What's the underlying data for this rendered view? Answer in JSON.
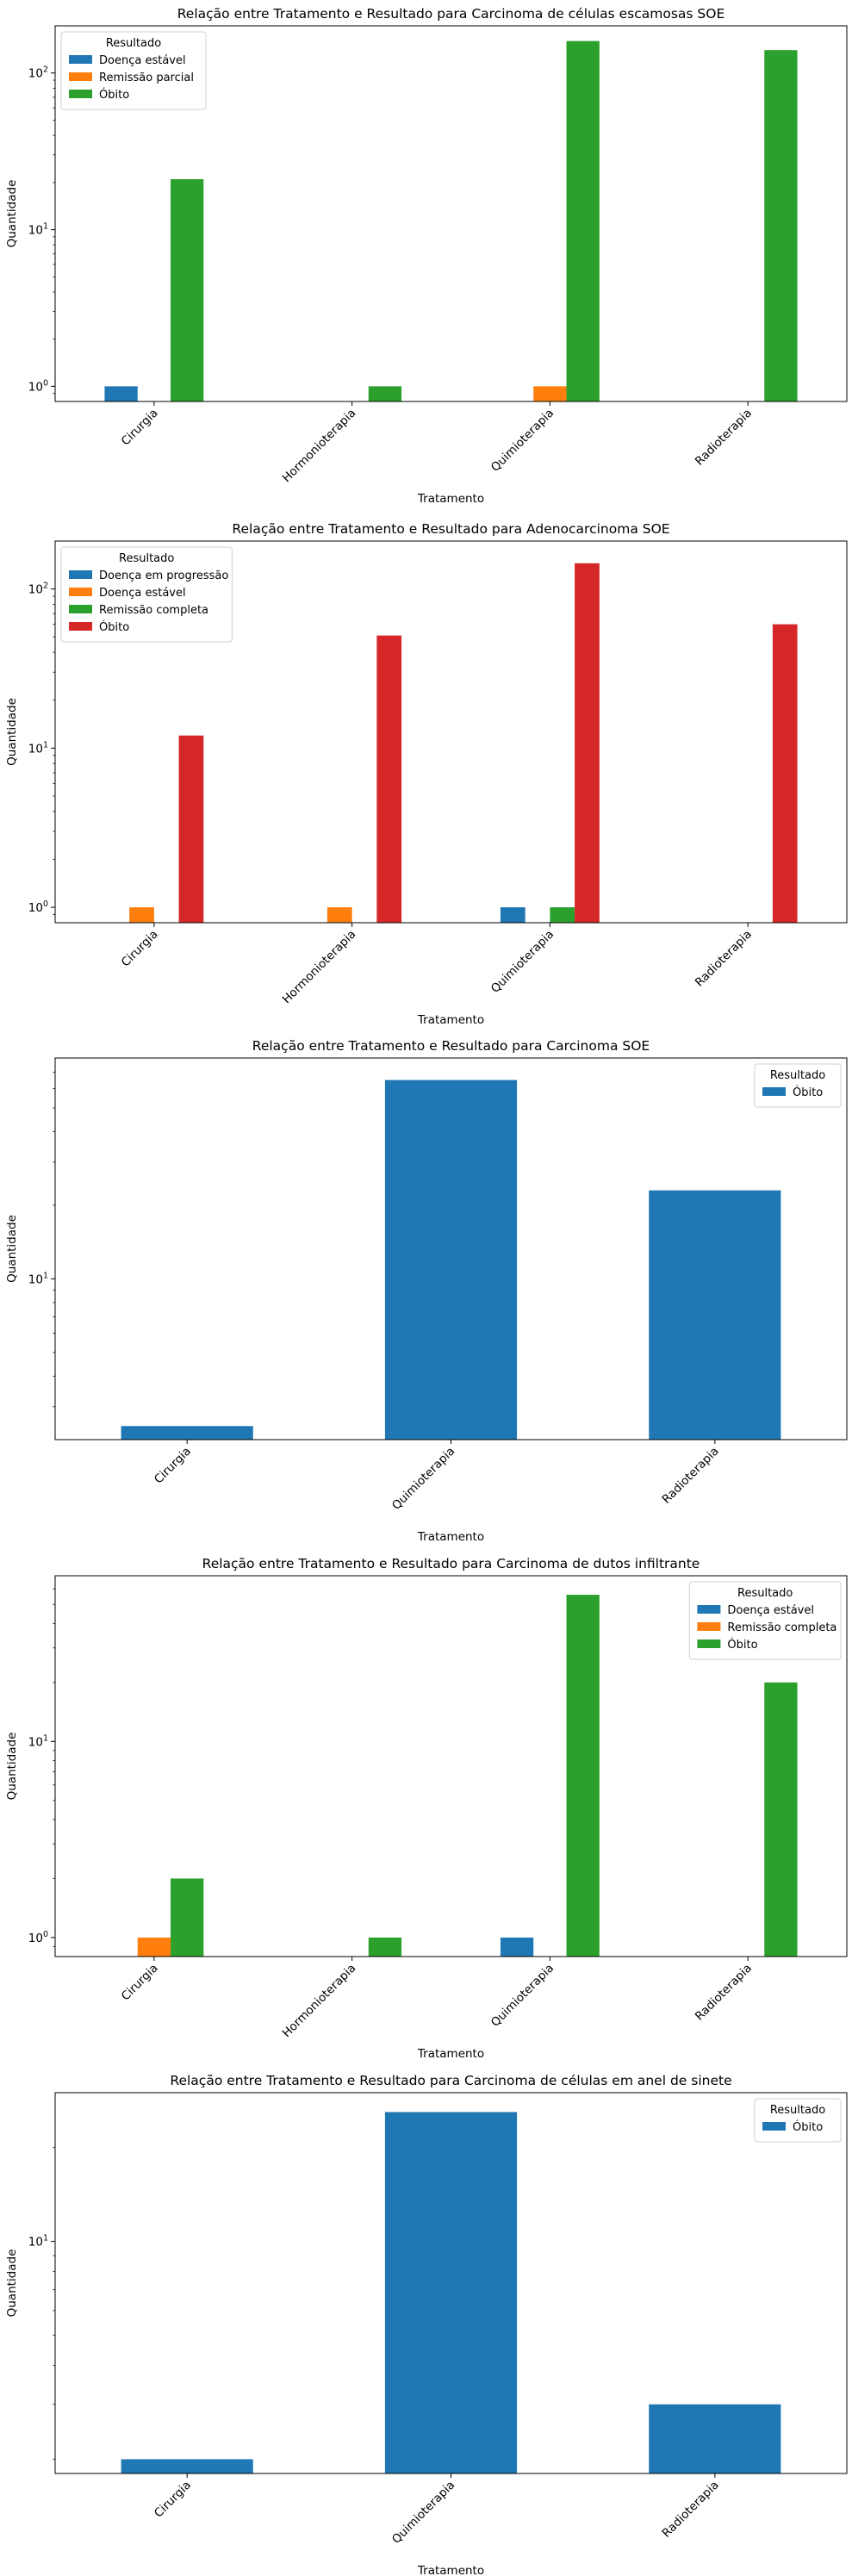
{
  "chart_data": [
    {
      "type": "bar",
      "title": "Relação entre Tratamento e Resultado para Carcinoma de células escamosas SOE",
      "xlabel": "Tratamento",
      "ylabel": "Quantidade",
      "scale": "log",
      "ylim": [
        0.8,
        200
      ],
      "yticks": [
        {
          "value": 1,
          "base": "10",
          "exp": "0"
        },
        {
          "value": 10,
          "base": "10",
          "exp": "1"
        },
        {
          "value": 100,
          "base": "10",
          "exp": "2"
        }
      ],
      "categories": [
        "Cirurgia",
        "Hormonioterapia",
        "Quimioterapia",
        "Radioterapia"
      ],
      "legend_title": "Resultado",
      "legend_position": "upper-left",
      "series": [
        {
          "name": "Doença estável",
          "color": "#1f77b4",
          "values": [
            1,
            null,
            null,
            null
          ]
        },
        {
          "name": "Remissão parcial",
          "color": "#ff7f0e",
          "values": [
            null,
            null,
            1,
            null
          ]
        },
        {
          "name": "Óbito",
          "color": "#2ca02c",
          "values": [
            21,
            1,
            160,
            140
          ]
        }
      ]
    },
    {
      "type": "bar",
      "title": "Relação entre Tratamento e Resultado para Adenocarcinoma SOE",
      "xlabel": "Tratamento",
      "ylabel": "Quantidade",
      "scale": "log",
      "ylim": [
        0.8,
        200
      ],
      "yticks": [
        {
          "value": 1,
          "base": "10",
          "exp": "0"
        },
        {
          "value": 10,
          "base": "10",
          "exp": "1"
        },
        {
          "value": 100,
          "base": "10",
          "exp": "2"
        }
      ],
      "categories": [
        "Cirurgia",
        "Hormonioterapia",
        "Quimioterapia",
        "Radioterapia"
      ],
      "legend_title": "Resultado",
      "legend_position": "upper-left",
      "series": [
        {
          "name": "Doença em progressão",
          "color": "#1f77b4",
          "values": [
            null,
            null,
            1,
            null
          ]
        },
        {
          "name": "Doença estável",
          "color": "#ff7f0e",
          "values": [
            1,
            1,
            null,
            null
          ]
        },
        {
          "name": "Remissão completa",
          "color": "#2ca02c",
          "values": [
            null,
            null,
            1,
            null
          ]
        },
        {
          "name": "Óbito",
          "color": "#d62728",
          "values": [
            12,
            51,
            145,
            60
          ]
        }
      ]
    },
    {
      "type": "bar",
      "title": "Relação entre Tratamento e Resultado para Carcinoma SOE",
      "xlabel": "Tratamento",
      "ylabel": "Quantidade",
      "scale": "log",
      "ylim": [
        2.2,
        80
      ],
      "yticks": [
        {
          "value": 10,
          "base": "10",
          "exp": "1"
        }
      ],
      "categories": [
        "Cirurgia",
        "Quimioterapia",
        "Radioterapia"
      ],
      "legend_title": "Resultado",
      "legend_position": "upper-right",
      "series": [
        {
          "name": "Óbito",
          "color": "#1f77b4",
          "values": [
            2.5,
            65,
            23
          ]
        }
      ]
    },
    {
      "type": "bar",
      "title": "Relação entre Tratamento e Resultado para Carcinoma de dutos infiltrante",
      "xlabel": "Tratamento",
      "ylabel": "Quantidade",
      "scale": "log",
      "ylim": [
        0.8,
        70
      ],
      "yticks": [
        {
          "value": 1,
          "base": "10",
          "exp": "0"
        },
        {
          "value": 10,
          "base": "10",
          "exp": "1"
        }
      ],
      "categories": [
        "Cirurgia",
        "Hormonioterapia",
        "Quimioterapia",
        "Radioterapia"
      ],
      "legend_title": "Resultado",
      "legend_position": "upper-right",
      "series": [
        {
          "name": "Doença estável",
          "color": "#1f77b4",
          "values": [
            null,
            null,
            1,
            null
          ]
        },
        {
          "name": "Remissão completa",
          "color": "#ff7f0e",
          "values": [
            1,
            null,
            null,
            null
          ]
        },
        {
          "name": "Óbito",
          "color": "#2ca02c",
          "values": [
            2,
            1,
            56,
            20
          ]
        }
      ]
    },
    {
      "type": "bar",
      "title": "Relação entre Tratamento e Resultado para Carcinoma de células em anel de sinete",
      "xlabel": "Tratamento",
      "ylabel": "Quantidade",
      "scale": "log",
      "ylim": [
        1.8,
        30
      ],
      "yticks": [
        {
          "value": 10,
          "base": "10",
          "exp": "1"
        }
      ],
      "categories": [
        "Cirurgia",
        "Quimioterapia",
        "Radioterapia"
      ],
      "legend_title": "Resultado",
      "legend_position": "upper-right",
      "series": [
        {
          "name": "Óbito",
          "color": "#1f77b4",
          "values": [
            2,
            26,
            3
          ]
        }
      ]
    }
  ]
}
